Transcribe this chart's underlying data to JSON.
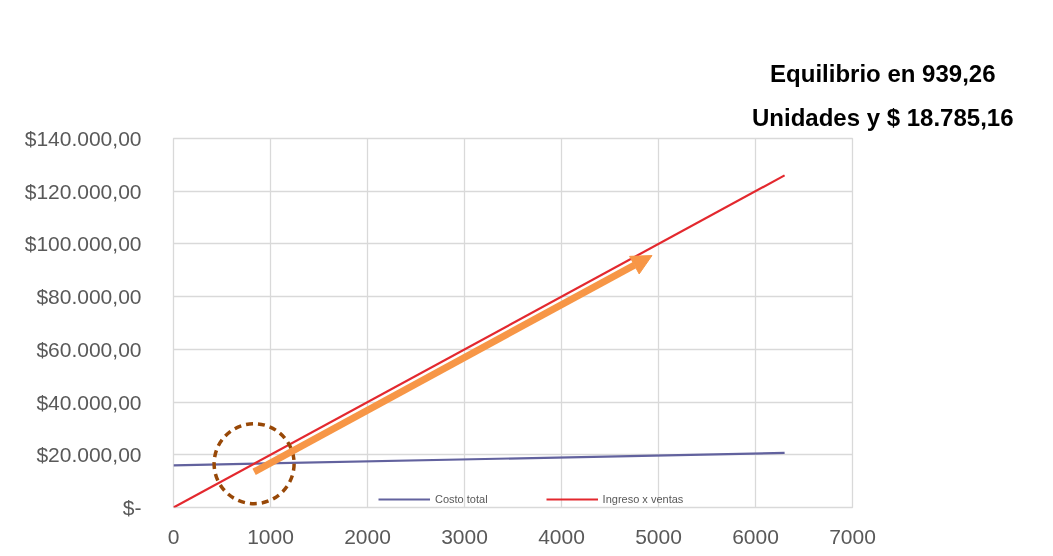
{
  "chart_data": {
    "type": "line",
    "annotations": [
      "Equilibrio en 939,26",
      "Unidades y $ 18.785,16"
    ],
    "x": [
      0,
      6300
    ],
    "series": [
      {
        "name": "Costo total",
        "color": "#62629e",
        "values": [
          16000,
          20700
        ]
      },
      {
        "name": "Ingreso x ventas",
        "color": "#e3282e",
        "values": [
          0,
          126000
        ]
      }
    ],
    "xlim": [
      0,
      7000
    ],
    "xticks": [
      0,
      1000,
      2000,
      3000,
      4000,
      5000,
      6000,
      7000
    ],
    "ylim": [
      0,
      140000
    ],
    "yticks": [
      {
        "value": 0,
        "label": "$-"
      },
      {
        "value": 20000,
        "label": "$20.000,00"
      },
      {
        "value": 40000,
        "label": "$40.000,00"
      },
      {
        "value": 60000,
        "label": "$60.000,00"
      },
      {
        "value": 80000,
        "label": "$80.000,00"
      },
      {
        "value": 100000,
        "label": "$100.000,00"
      },
      {
        "value": 120000,
        "label": "$120.000,00"
      },
      {
        "value": 140000,
        "label": "$140.000,00"
      }
    ],
    "grid": true,
    "legend": "bottom",
    "line_style": "solid"
  }
}
